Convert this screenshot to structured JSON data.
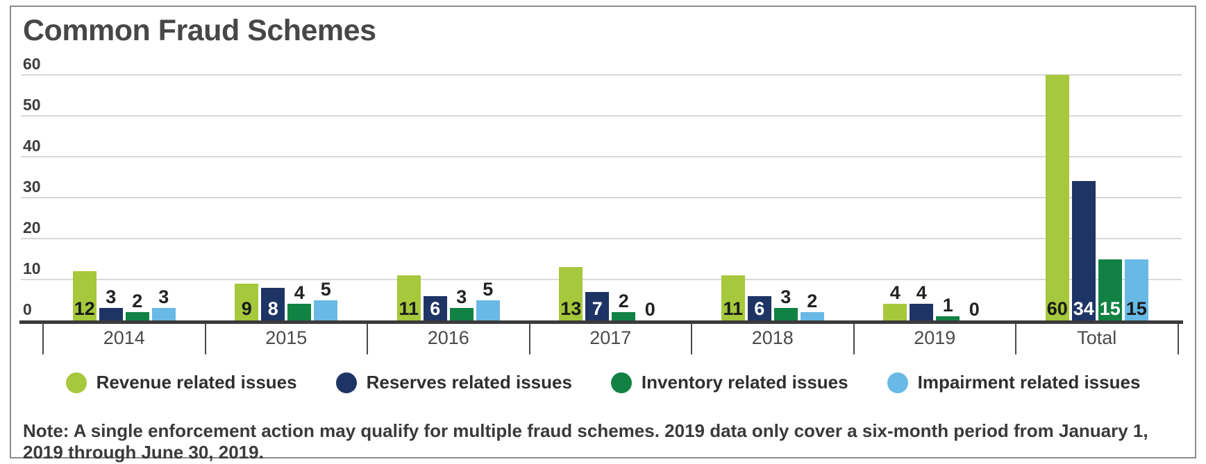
{
  "title": "Common Fraud Schemes",
  "note": "Note: A single enforcement action may qualify for multiple fraud schemes. 2019 data only cover a six-month period from January 1, 2019 through June 30, 2019.",
  "colors": {
    "title_text": "#474747",
    "gridline": "#d9d9d9",
    "axis_line": "#3b3b3b",
    "revenue_green": "#a5c83c",
    "reserves_navy": "#1e3464",
    "inventory_green": "#118243",
    "impairment_blue": "#68b9e5"
  },
  "chart_data": {
    "type": "bar",
    "title": "Common Fraud Schemes",
    "categories": [
      "2014",
      "2015",
      "2016",
      "2017",
      "2018",
      "2019",
      "Total"
    ],
    "series": [
      {
        "name": "Revenue related issues",
        "color": "#a5c83c",
        "label_color": "#1a1a1a",
        "values": [
          12,
          9,
          11,
          13,
          11,
          4,
          60
        ]
      },
      {
        "name": "Reserves related issues",
        "color": "#1e3464",
        "label_color": "#ffffff",
        "values": [
          3,
          8,
          6,
          7,
          6,
          4,
          34
        ]
      },
      {
        "name": "Inventory related issues",
        "color": "#118243",
        "label_color": "#ffffff",
        "values": [
          2,
          4,
          3,
          2,
          3,
          1,
          15
        ]
      },
      {
        "name": "Impairment related issues",
        "color": "#68b9e5",
        "label_color": "#1a1a1a",
        "values": [
          3,
          5,
          5,
          0,
          2,
          0,
          15
        ]
      }
    ],
    "y_ticks": [
      0,
      10,
      20,
      30,
      40,
      50,
      60
    ],
    "ylim": [
      0,
      60
    ],
    "xlabel": "",
    "ylabel": "",
    "grid": true,
    "legend_position": "bottom",
    "data_labels": true
  }
}
